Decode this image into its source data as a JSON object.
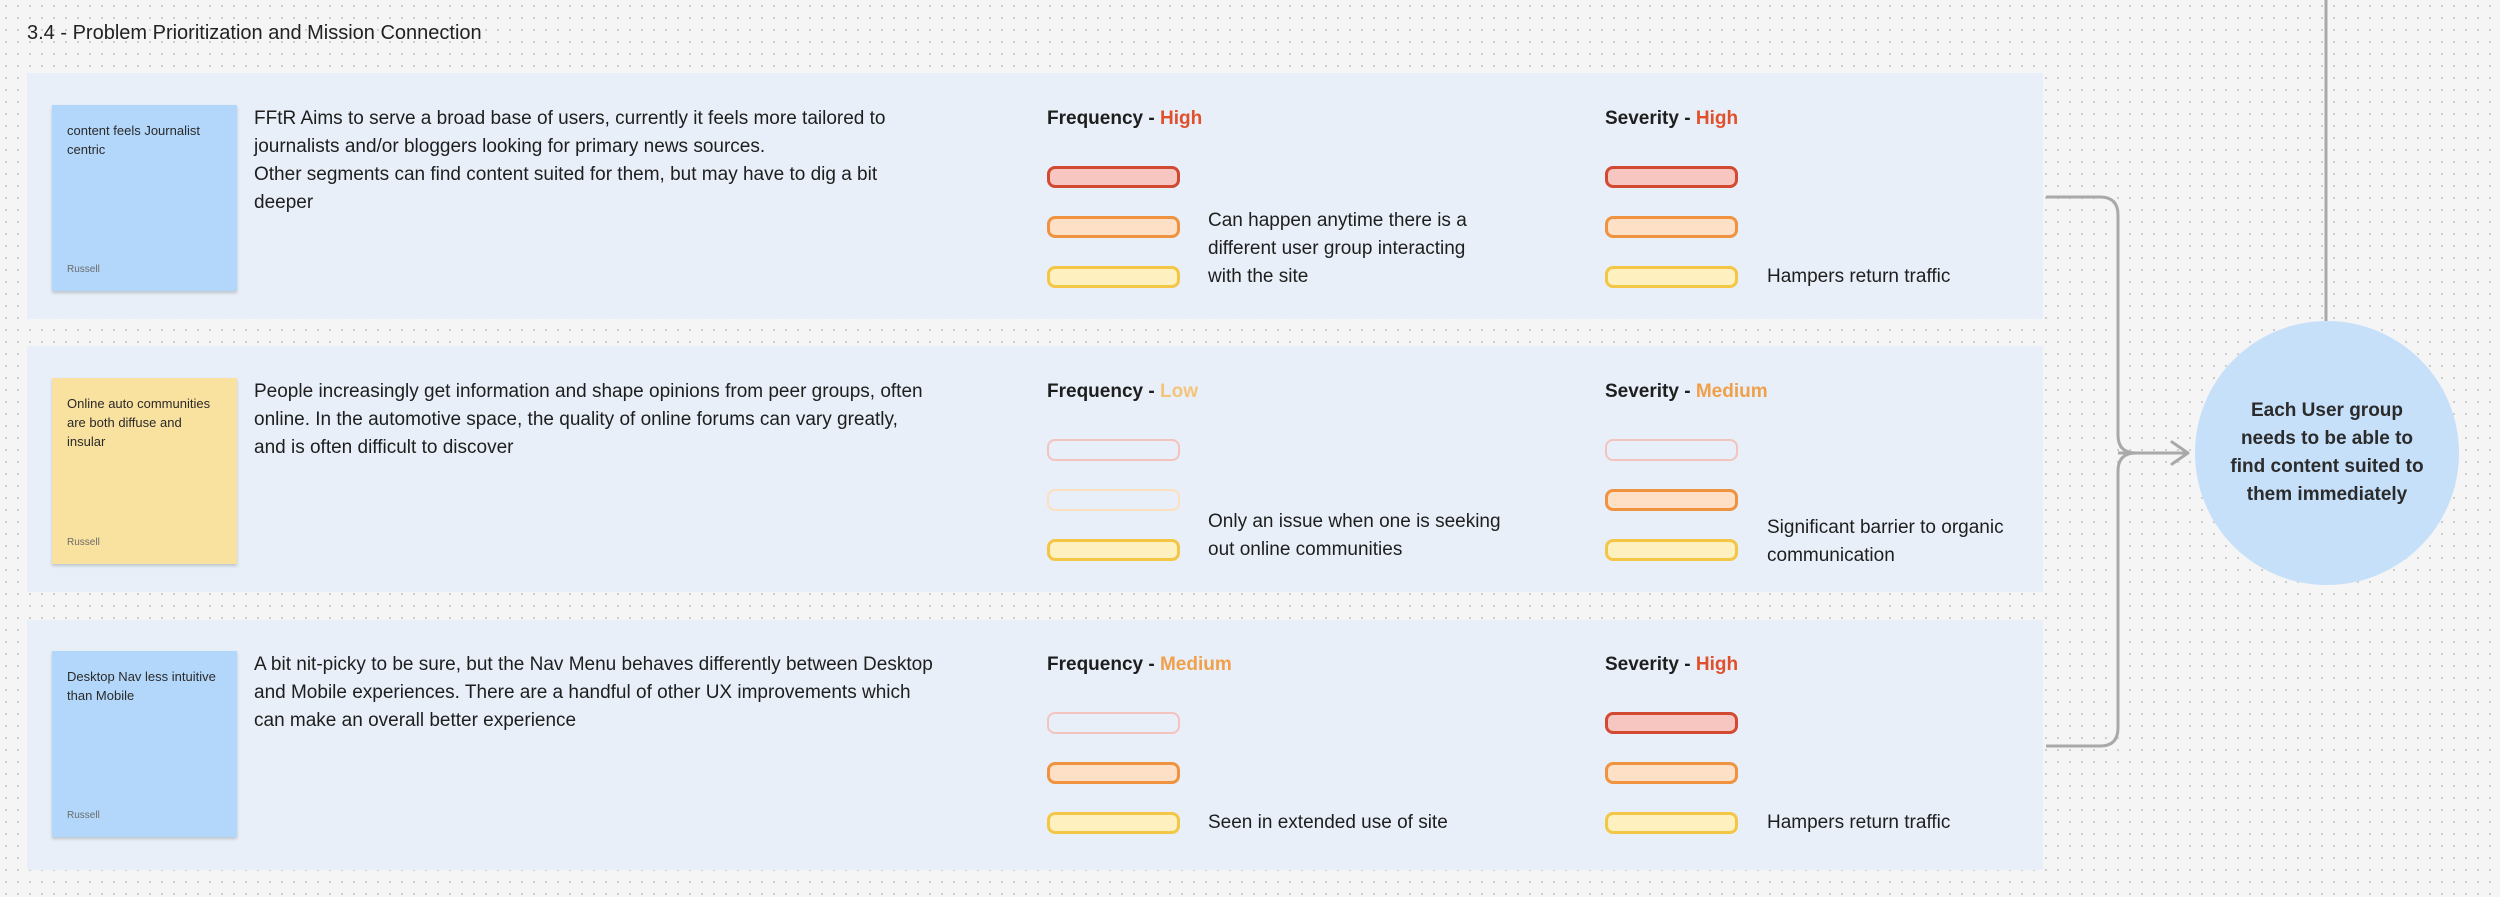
{
  "section_title": "3.4 - Problem Prioritization and Mission Connection",
  "metric_labels": {
    "frequency": "Frequency",
    "severity": "Severity",
    "separator": "-"
  },
  "level_colors": {
    "High": "#e0502b",
    "Medium": "#f0a04b",
    "Low": "#f3c57b"
  },
  "rows": [
    {
      "sticky": {
        "text": "content feels Journalist centric",
        "author": "Russell",
        "color": "blue"
      },
      "description": [
        "FFtR Aims to serve a broad base of users, currently it feels more tailored to journalists and/or bloggers looking for primary news sources.",
        "Other segments can find content suited for them, but may have to dig a bit deeper"
      ],
      "frequency": {
        "level": "High",
        "note": "Can happen anytime there is a different user group interacting with the site",
        "pills": [
          "on",
          "on",
          "on"
        ]
      },
      "severity": {
        "level": "High",
        "note": "Hampers return traffic",
        "pills": [
          "on",
          "on",
          "on"
        ]
      }
    },
    {
      "sticky": {
        "text": "Online auto communities are both diffuse and insular",
        "author": "Russell",
        "color": "yellow"
      },
      "description": [
        "People increasingly get information and shape opinions from peer groups, often online. In the automotive space, the quality of online forums can vary greatly, and is often difficult to discover"
      ],
      "frequency": {
        "level": "Low",
        "note": "Only an issue when one is seeking out online communities",
        "pills": [
          "off",
          "off",
          "on"
        ]
      },
      "severity": {
        "level": "Medium",
        "note": "Significant barrier to organic communication",
        "pills": [
          "off",
          "on",
          "on"
        ]
      }
    },
    {
      "sticky": {
        "text": "Desktop Nav less intuitive than Mobile",
        "author": "Russell",
        "color": "blue"
      },
      "description": [
        "A bit nit-picky to be sure, but the Nav Menu behaves differently between Desktop and Mobile experiences. There are a handful of other UX improvements which can make an overall better experience"
      ],
      "frequency": {
        "level": "Medium",
        "note": "Seen in extended use of site",
        "pills": [
          "off",
          "on",
          "on"
        ]
      },
      "severity": {
        "level": "High",
        "note": "Hampers return traffic",
        "pills": [
          "on",
          "on",
          "on"
        ]
      }
    }
  ],
  "goal": {
    "text": "Each User group needs to be able to find content suited to them immediately"
  }
}
